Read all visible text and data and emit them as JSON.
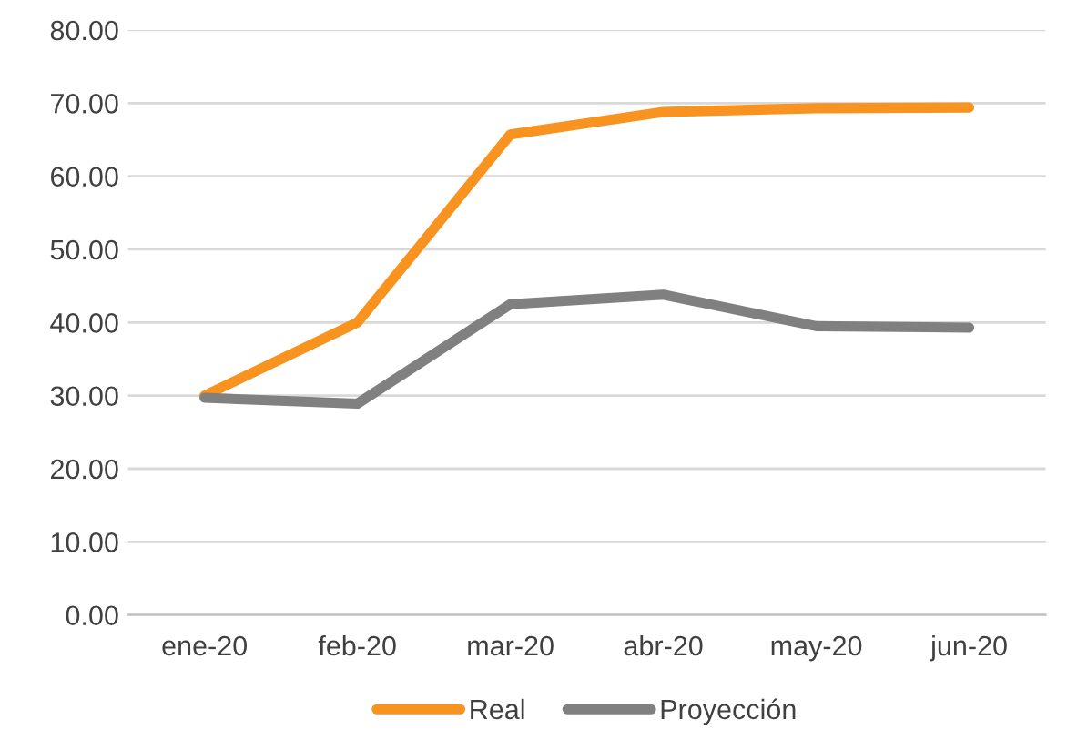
{
  "chart_data": {
    "type": "line",
    "categories": [
      "ene-20",
      "feb-20",
      "mar-20",
      "abr-20",
      "may-20",
      "jun-20"
    ],
    "series": [
      {
        "name": "Real",
        "color": "#f7931e",
        "values": [
          30.0,
          40.0,
          65.7,
          68.8,
          69.3,
          69.4
        ]
      },
      {
        "name": "Proyección",
        "color": "#808080",
        "values": [
          29.7,
          28.9,
          42.5,
          43.8,
          39.5,
          39.3
        ]
      }
    ],
    "ylim": [
      0,
      80
    ],
    "yticks": [
      {
        "value": 0,
        "label": "0.00"
      },
      {
        "value": 10,
        "label": "10.00"
      },
      {
        "value": 20,
        "label": "20.00"
      },
      {
        "value": 30,
        "label": "30.00"
      },
      {
        "value": 40,
        "label": "40.00"
      },
      {
        "value": 50,
        "label": "50.00"
      },
      {
        "value": 60,
        "label": "60.00"
      },
      {
        "value": 70,
        "label": "70.00"
      },
      {
        "value": 80,
        "label": "80.00"
      }
    ],
    "grid": "y",
    "legend": "bottom",
    "marker": "none",
    "line_style": "solid"
  }
}
